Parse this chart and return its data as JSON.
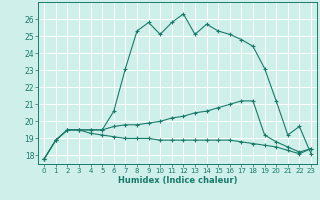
{
  "xlabel": "Humidex (Indice chaleur)",
  "background_color": "#cff0ea",
  "line_color": "#1a7a6a",
  "grid_color": "#ffffff",
  "xlim": [
    -0.5,
    23.5
  ],
  "ylim": [
    17.5,
    27.0
  ],
  "yticks": [
    18,
    19,
    20,
    21,
    22,
    23,
    24,
    25,
    26
  ],
  "xticks": [
    0,
    1,
    2,
    3,
    4,
    5,
    6,
    7,
    8,
    9,
    10,
    11,
    12,
    13,
    14,
    15,
    16,
    17,
    18,
    19,
    20,
    21,
    22,
    23
  ],
  "series1_x": [
    0,
    1,
    2,
    3,
    4,
    5,
    6,
    7,
    8,
    9,
    10,
    11,
    12,
    13,
    14,
    15,
    16,
    17,
    18,
    19,
    20,
    21,
    22,
    23
  ],
  "series1_y": [
    17.8,
    18.9,
    19.5,
    19.5,
    19.5,
    19.5,
    20.6,
    23.1,
    25.3,
    25.8,
    25.1,
    25.8,
    26.3,
    25.1,
    25.7,
    25.3,
    25.1,
    24.8,
    24.4,
    23.1,
    21.2,
    19.2,
    19.7,
    18.1
  ],
  "series2_x": [
    0,
    1,
    2,
    3,
    4,
    5,
    6,
    7,
    8,
    9,
    10,
    11,
    12,
    13,
    14,
    15,
    16,
    17,
    18,
    19,
    20,
    21,
    22,
    23
  ],
  "series2_y": [
    17.8,
    18.9,
    19.5,
    19.5,
    19.5,
    19.5,
    19.7,
    19.8,
    19.8,
    19.9,
    20.0,
    20.2,
    20.3,
    20.5,
    20.6,
    20.8,
    21.0,
    21.2,
    21.2,
    19.2,
    18.8,
    18.5,
    18.2,
    18.4
  ],
  "series3_x": [
    0,
    1,
    2,
    3,
    4,
    5,
    6,
    7,
    8,
    9,
    10,
    11,
    12,
    13,
    14,
    15,
    16,
    17,
    18,
    19,
    20,
    21,
    22,
    23
  ],
  "series3_y": [
    17.8,
    18.9,
    19.5,
    19.5,
    19.3,
    19.2,
    19.1,
    19.0,
    19.0,
    19.0,
    18.9,
    18.9,
    18.9,
    18.9,
    18.9,
    18.9,
    18.9,
    18.8,
    18.7,
    18.6,
    18.5,
    18.3,
    18.1,
    18.4
  ]
}
